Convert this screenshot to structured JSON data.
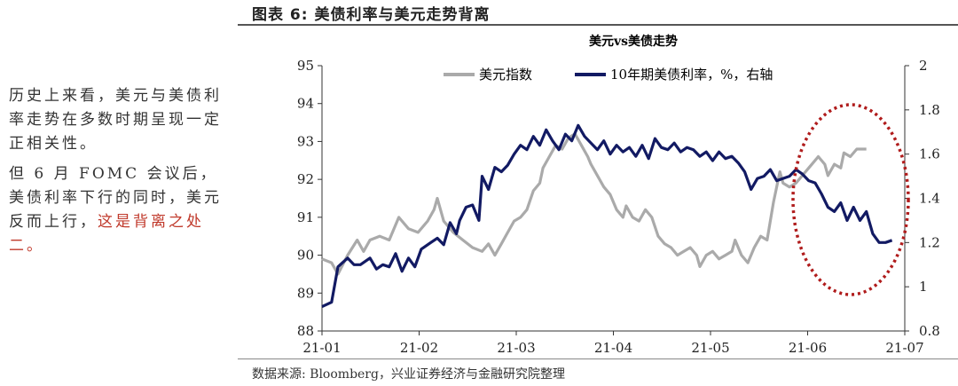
{
  "side_text": {
    "p1": "历史上来看，美元与美债利率走势在多数时期呈现一定正相关性。",
    "p2_plain": "但 6 月 FOMC 会议后，美债利率下行的同时，美元反而上行，",
    "p2_highlight": "这是背离之处二。"
  },
  "figure": {
    "title": "图表 6: 美债利率与美元走势背离",
    "source": "数据来源: Bloomberg，兴业证券经济与金融研究院整理"
  },
  "colors": {
    "usd_index": "#aaaaaa",
    "ust_10y": "#121a63",
    "highlight_ellipse": "#b01c1c"
  },
  "chart_data": {
    "type": "line",
    "title": "美元vs美债走势",
    "x_tick_labels": [
      "21-01",
      "21-02",
      "21-03",
      "21-04",
      "21-05",
      "21-06",
      "21-07"
    ],
    "left_axis": {
      "ylim": [
        88,
        95
      ],
      "ticks": [
        "88",
        "89",
        "90",
        "91",
        "92",
        "93",
        "94",
        "95"
      ]
    },
    "right_axis": {
      "ylim": [
        0.8,
        2
      ],
      "ticks": [
        "0.8",
        "1",
        "1.2",
        "1.4",
        "1.6",
        "1.8",
        "2"
      ]
    },
    "legend_position": "top",
    "series": [
      {
        "name": "美元指数",
        "axis": "left",
        "points": [
          [
            0,
            89.9
          ],
          [
            3,
            89.8
          ],
          [
            5,
            89.5
          ],
          [
            8,
            90.0
          ],
          [
            11,
            90.4
          ],
          [
            13,
            90.1
          ],
          [
            15,
            90.4
          ],
          [
            18,
            90.5
          ],
          [
            21,
            90.4
          ],
          [
            24,
            91.0
          ],
          [
            27,
            90.7
          ],
          [
            30,
            90.6
          ],
          [
            33,
            90.9
          ],
          [
            35,
            91.2
          ],
          [
            36,
            91.5
          ],
          [
            38,
            90.9
          ],
          [
            41,
            90.6
          ],
          [
            44,
            90.4
          ],
          [
            47,
            90.2
          ],
          [
            50,
            90.1
          ],
          [
            52,
            90.3
          ],
          [
            54,
            90.0
          ],
          [
            56,
            90.3
          ],
          [
            58,
            90.6
          ],
          [
            60,
            90.9
          ],
          [
            62,
            91.0
          ],
          [
            64,
            91.2
          ],
          [
            66,
            91.7
          ],
          [
            68,
            91.9
          ],
          [
            69,
            92.3
          ],
          [
            71,
            92.6
          ],
          [
            73,
            92.9
          ],
          [
            75,
            92.8
          ],
          [
            77,
            93.1
          ],
          [
            79,
            93.2
          ],
          [
            81,
            92.9
          ],
          [
            83,
            92.6
          ],
          [
            84,
            92.4
          ],
          [
            86,
            92.1
          ],
          [
            88,
            91.8
          ],
          [
            90,
            91.6
          ],
          [
            92,
            91.2
          ],
          [
            94,
            91.0
          ],
          [
            95,
            91.3
          ],
          [
            97,
            91.0
          ],
          [
            99,
            90.9
          ],
          [
            101,
            91.2
          ],
          [
            103,
            91.0
          ],
          [
            105,
            90.5
          ],
          [
            107,
            90.3
          ],
          [
            109,
            90.2
          ],
          [
            111,
            90.0
          ],
          [
            113,
            90.1
          ],
          [
            115,
            90.2
          ],
          [
            117,
            90.0
          ],
          [
            118,
            89.7
          ],
          [
            120,
            90.0
          ],
          [
            122,
            90.1
          ],
          [
            124,
            89.9
          ],
          [
            126,
            90.0
          ],
          [
            128,
            90.1
          ],
          [
            129,
            90.4
          ],
          [
            131,
            90.0
          ],
          [
            133,
            89.8
          ],
          [
            135,
            90.2
          ],
          [
            137,
            90.5
          ],
          [
            139,
            90.4
          ],
          [
            141,
            91.4
          ],
          [
            143,
            92.2
          ],
          [
            144,
            91.9
          ],
          [
            146,
            91.8
          ],
          [
            148,
            91.9
          ],
          [
            150,
            92.1
          ],
          [
            152,
            92.3
          ],
          [
            153,
            92.4
          ],
          [
            155,
            92.6
          ],
          [
            157,
            92.4
          ],
          [
            158,
            92.1
          ],
          [
            160,
            92.4
          ],
          [
            162,
            92.3
          ],
          [
            163,
            92.7
          ],
          [
            165,
            92.6
          ],
          [
            167,
            92.8
          ],
          [
            170,
            92.8
          ]
        ]
      },
      {
        "name": "10年期美债利率，%，右轴",
        "axis": "right",
        "points": [
          [
            0,
            0.91
          ],
          [
            3,
            0.93
          ],
          [
            5,
            1.09
          ],
          [
            8,
            1.13
          ],
          [
            10,
            1.1
          ],
          [
            12,
            1.1
          ],
          [
            15,
            1.13
          ],
          [
            17,
            1.08
          ],
          [
            19,
            1.1
          ],
          [
            21,
            1.09
          ],
          [
            23,
            1.15
          ],
          [
            25,
            1.07
          ],
          [
            27,
            1.13
          ],
          [
            29,
            1.09
          ],
          [
            31,
            1.17
          ],
          [
            34,
            1.2
          ],
          [
            36,
            1.22
          ],
          [
            38,
            1.19
          ],
          [
            40,
            1.29
          ],
          [
            42,
            1.24
          ],
          [
            43,
            1.3
          ],
          [
            45,
            1.36
          ],
          [
            47,
            1.37
          ],
          [
            49,
            1.3
          ],
          [
            50,
            1.5
          ],
          [
            52,
            1.44
          ],
          [
            54,
            1.54
          ],
          [
            56,
            1.52
          ],
          [
            58,
            1.55
          ],
          [
            60,
            1.6
          ],
          [
            62,
            1.64
          ],
          [
            64,
            1.62
          ],
          [
            66,
            1.68
          ],
          [
            68,
            1.64
          ],
          [
            70,
            1.71
          ],
          [
            72,
            1.66
          ],
          [
            74,
            1.62
          ],
          [
            76,
            1.69
          ],
          [
            78,
            1.66
          ],
          [
            80,
            1.73
          ],
          [
            82,
            1.68
          ],
          [
            84,
            1.65
          ],
          [
            86,
            1.62
          ],
          [
            88,
            1.66
          ],
          [
            90,
            1.6
          ],
          [
            92,
            1.64
          ],
          [
            94,
            1.61
          ],
          [
            96,
            1.63
          ],
          [
            98,
            1.59
          ],
          [
            100,
            1.64
          ],
          [
            102,
            1.58
          ],
          [
            104,
            1.67
          ],
          [
            106,
            1.63
          ],
          [
            108,
            1.62
          ],
          [
            110,
            1.65
          ],
          [
            112,
            1.61
          ],
          [
            114,
            1.63
          ],
          [
            116,
            1.62
          ],
          [
            118,
            1.59
          ],
          [
            120,
            1.61
          ],
          [
            122,
            1.57
          ],
          [
            124,
            1.61
          ],
          [
            126,
            1.58
          ],
          [
            128,
            1.59
          ],
          [
            130,
            1.56
          ],
          [
            132,
            1.52
          ],
          [
            134,
            1.44
          ],
          [
            136,
            1.49
          ],
          [
            138,
            1.5
          ],
          [
            140,
            1.53
          ],
          [
            142,
            1.48
          ],
          [
            144,
            1.49
          ],
          [
            146,
            1.5
          ],
          [
            148,
            1.53
          ],
          [
            150,
            1.51
          ],
          [
            152,
            1.48
          ],
          [
            154,
            1.47
          ],
          [
            156,
            1.42
          ],
          [
            158,
            1.36
          ],
          [
            160,
            1.34
          ],
          [
            162,
            1.38
          ],
          [
            164,
            1.3
          ],
          [
            166,
            1.36
          ],
          [
            168,
            1.3
          ],
          [
            170,
            1.34
          ],
          [
            172,
            1.24
          ],
          [
            174,
            1.2
          ],
          [
            176,
            1.2
          ],
          [
            178,
            1.21
          ]
        ]
      }
    ]
  }
}
